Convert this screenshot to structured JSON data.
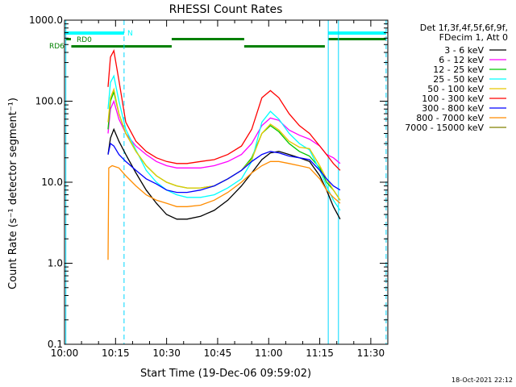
{
  "chart_data": {
    "type": "line",
    "title": "RHESSI Count Rates",
    "xlabel": "Start Time (19-Dec-06 09:59:02)",
    "ylabel": "Count Rate (s⁻¹ detector segment⁻¹)",
    "yscale": "log",
    "ylim": [
      0.1,
      1000
    ],
    "xlim_minutes": [
      0,
      95
    ],
    "x_ticks": [
      {
        "m": 0,
        "label": "10:00"
      },
      {
        "m": 15,
        "label": "10:15"
      },
      {
        "m": 30,
        "label": "10:30"
      },
      {
        "m": 45,
        "label": "10:45"
      },
      {
        "m": 60,
        "label": "11:00"
      },
      {
        "m": 75,
        "label": "11:15"
      },
      {
        "m": 90,
        "label": "11:30"
      }
    ],
    "y_ticks": [
      {
        "v": 0.1,
        "label": "0.1"
      },
      {
        "v": 1,
        "label": "1.0"
      },
      {
        "v": 10,
        "label": "10.0"
      },
      {
        "v": 100,
        "label": "100.0"
      },
      {
        "v": 1000,
        "label": "1000.0"
      }
    ],
    "legend_header": [
      "Det 1f,3f,4f,5f,6f,9f,",
      "FDecim 1, Att 0"
    ],
    "series": [
      {
        "name": "3 - 6 keV",
        "color": "#000000",
        "points": [
          [
            12.8,
            22
          ],
          [
            13.5,
            35
          ],
          [
            14.5,
            45
          ],
          [
            16,
            32
          ],
          [
            18,
            22
          ],
          [
            21,
            13
          ],
          [
            24,
            8
          ],
          [
            27,
            5.5
          ],
          [
            30,
            4
          ],
          [
            33,
            3.5
          ],
          [
            36,
            3.5
          ],
          [
            40,
            3.8
          ],
          [
            44,
            4.5
          ],
          [
            48,
            6
          ],
          [
            52,
            9
          ],
          [
            55,
            13
          ],
          [
            58,
            19
          ],
          [
            60.5,
            23
          ],
          [
            63,
            24
          ],
          [
            66,
            22
          ],
          [
            69,
            20
          ],
          [
            72,
            18
          ],
          [
            75,
            12
          ],
          [
            77,
            8
          ],
          [
            79,
            5
          ],
          [
            81,
            3.5
          ]
        ]
      },
      {
        "name": "6 - 12 keV",
        "color": "#ff00ff",
        "points": [
          [
            12.8,
            40
          ],
          [
            13.5,
            80
          ],
          [
            14.5,
            100
          ],
          [
            16,
            60
          ],
          [
            18,
            40
          ],
          [
            21,
            28
          ],
          [
            24,
            22
          ],
          [
            27,
            18
          ],
          [
            30,
            16
          ],
          [
            33,
            15
          ],
          [
            36,
            15
          ],
          [
            40,
            15
          ],
          [
            44,
            16
          ],
          [
            48,
            18
          ],
          [
            52,
            22
          ],
          [
            55,
            30
          ],
          [
            58,
            50
          ],
          [
            60.5,
            62
          ],
          [
            63,
            58
          ],
          [
            66,
            44
          ],
          [
            69,
            38
          ],
          [
            72,
            34
          ],
          [
            75,
            28
          ],
          [
            77,
            22
          ],
          [
            79,
            20
          ],
          [
            81,
            17
          ]
        ]
      },
      {
        "name": "12 - 25 keV",
        "color": "#00c800",
        "points": [
          [
            12.8,
            45
          ],
          [
            13.5,
            100
          ],
          [
            14.5,
            130
          ],
          [
            16,
            70
          ],
          [
            18,
            40
          ],
          [
            21,
            24
          ],
          [
            24,
            16
          ],
          [
            27,
            12
          ],
          [
            30,
            10
          ],
          [
            33,
            9
          ],
          [
            36,
            8.5
          ],
          [
            40,
            8.5
          ],
          [
            44,
            9
          ],
          [
            48,
            11
          ],
          [
            52,
            14
          ],
          [
            55,
            20
          ],
          [
            58,
            40
          ],
          [
            60.5,
            50
          ],
          [
            63,
            42
          ],
          [
            66,
            30
          ],
          [
            69,
            24
          ],
          [
            72,
            21
          ],
          [
            75,
            15
          ],
          [
            77,
            10
          ],
          [
            79,
            8
          ],
          [
            81,
            6
          ]
        ]
      },
      {
        "name": "25 - 50 keV",
        "color": "#00ffff",
        "points": [
          [
            12.8,
            80
          ],
          [
            13.5,
            170
          ],
          [
            14.5,
            205
          ],
          [
            16,
            100
          ],
          [
            18,
            45
          ],
          [
            21,
            25
          ],
          [
            24,
            14
          ],
          [
            27,
            10
          ],
          [
            30,
            8
          ],
          [
            33,
            7
          ],
          [
            36,
            6.5
          ],
          [
            40,
            6.5
          ],
          [
            44,
            7
          ],
          [
            48,
            8.5
          ],
          [
            52,
            11
          ],
          [
            55,
            18
          ],
          [
            58,
            55
          ],
          [
            60.5,
            75
          ],
          [
            63,
            60
          ],
          [
            66,
            40
          ],
          [
            69,
            30
          ],
          [
            72,
            25
          ],
          [
            75,
            14
          ],
          [
            77,
            9
          ],
          [
            79,
            6
          ],
          [
            81,
            4.5
          ]
        ]
      },
      {
        "name": "50 - 100 keV",
        "color": "#e6c800",
        "points": [
          [
            12.8,
            55
          ],
          [
            13.5,
            110
          ],
          [
            14.5,
            140
          ],
          [
            16,
            70
          ],
          [
            18,
            40
          ],
          [
            21,
            24
          ],
          [
            24,
            16
          ],
          [
            27,
            12
          ],
          [
            30,
            10
          ],
          [
            33,
            9
          ],
          [
            36,
            8.5
          ],
          [
            40,
            8.5
          ],
          [
            44,
            9
          ],
          [
            48,
            11
          ],
          [
            52,
            14
          ],
          [
            55,
            19
          ],
          [
            58,
            40
          ],
          [
            60.5,
            52
          ],
          [
            63,
            44
          ],
          [
            66,
            32
          ],
          [
            69,
            27
          ],
          [
            72,
            26
          ],
          [
            75,
            16
          ],
          [
            77,
            11
          ],
          [
            79,
            8
          ],
          [
            81,
            6
          ]
        ]
      },
      {
        "name": "100 - 300 keV",
        "color": "#ff0000",
        "points": [
          [
            12.8,
            150
          ],
          [
            13.5,
            350
          ],
          [
            14.5,
            420
          ],
          [
            16,
            180
          ],
          [
            18,
            55
          ],
          [
            21,
            32
          ],
          [
            24,
            24
          ],
          [
            27,
            20
          ],
          [
            30,
            18
          ],
          [
            33,
            17
          ],
          [
            36,
            17
          ],
          [
            40,
            18
          ],
          [
            44,
            19
          ],
          [
            48,
            22
          ],
          [
            52,
            28
          ],
          [
            55,
            45
          ],
          [
            58,
            110
          ],
          [
            60.5,
            135
          ],
          [
            63,
            110
          ],
          [
            66,
            70
          ],
          [
            69,
            50
          ],
          [
            72,
            40
          ],
          [
            75,
            28
          ],
          [
            77,
            22
          ],
          [
            79,
            17
          ],
          [
            81,
            14
          ]
        ]
      },
      {
        "name": "300 - 800 keV",
        "color": "#0000ff",
        "points": [
          [
            12.8,
            22
          ],
          [
            13.5,
            30
          ],
          [
            14.5,
            28
          ],
          [
            16,
            22
          ],
          [
            18,
            18
          ],
          [
            21,
            14
          ],
          [
            24,
            11
          ],
          [
            27,
            9.5
          ],
          [
            30,
            8
          ],
          [
            33,
            7.5
          ],
          [
            36,
            7.5
          ],
          [
            40,
            8
          ],
          [
            44,
            9
          ],
          [
            48,
            11
          ],
          [
            52,
            14
          ],
          [
            55,
            18
          ],
          [
            58,
            22
          ],
          [
            60.5,
            24
          ],
          [
            63,
            23
          ],
          [
            66,
            21
          ],
          [
            69,
            20
          ],
          [
            72,
            19
          ],
          [
            75,
            14
          ],
          [
            77,
            11
          ],
          [
            79,
            9
          ],
          [
            81,
            8
          ]
        ]
      },
      {
        "name": "800 - 7000 keV",
        "color": "#ff8c00",
        "points": [
          [
            12.8,
            1.1
          ],
          [
            13,
            15
          ],
          [
            14,
            16
          ],
          [
            16,
            15
          ],
          [
            18,
            12
          ],
          [
            21,
            9
          ],
          [
            24,
            7
          ],
          [
            27,
            6
          ],
          [
            30,
            5.5
          ],
          [
            33,
            5
          ],
          [
            36,
            5
          ],
          [
            40,
            5.2
          ],
          [
            44,
            6
          ],
          [
            48,
            7.5
          ],
          [
            52,
            10
          ],
          [
            55,
            13
          ],
          [
            58,
            16
          ],
          [
            60.5,
            18
          ],
          [
            63,
            18
          ],
          [
            66,
            17
          ],
          [
            69,
            16
          ],
          [
            72,
            15
          ],
          [
            75,
            11
          ],
          [
            77,
            8
          ],
          [
            79,
            6.5
          ],
          [
            81,
            5.5
          ]
        ]
      },
      {
        "name": "7000 - 15000 keV",
        "color": "#808000",
        "points": []
      }
    ],
    "annotations": [
      {
        "text": "N",
        "color": "#00ffff"
      },
      {
        "text": "RD0",
        "color": "#008000"
      },
      {
        "text": "RD6",
        "color": "#008000"
      }
    ],
    "timestamp": "18-Oct-2021 22:12"
  }
}
